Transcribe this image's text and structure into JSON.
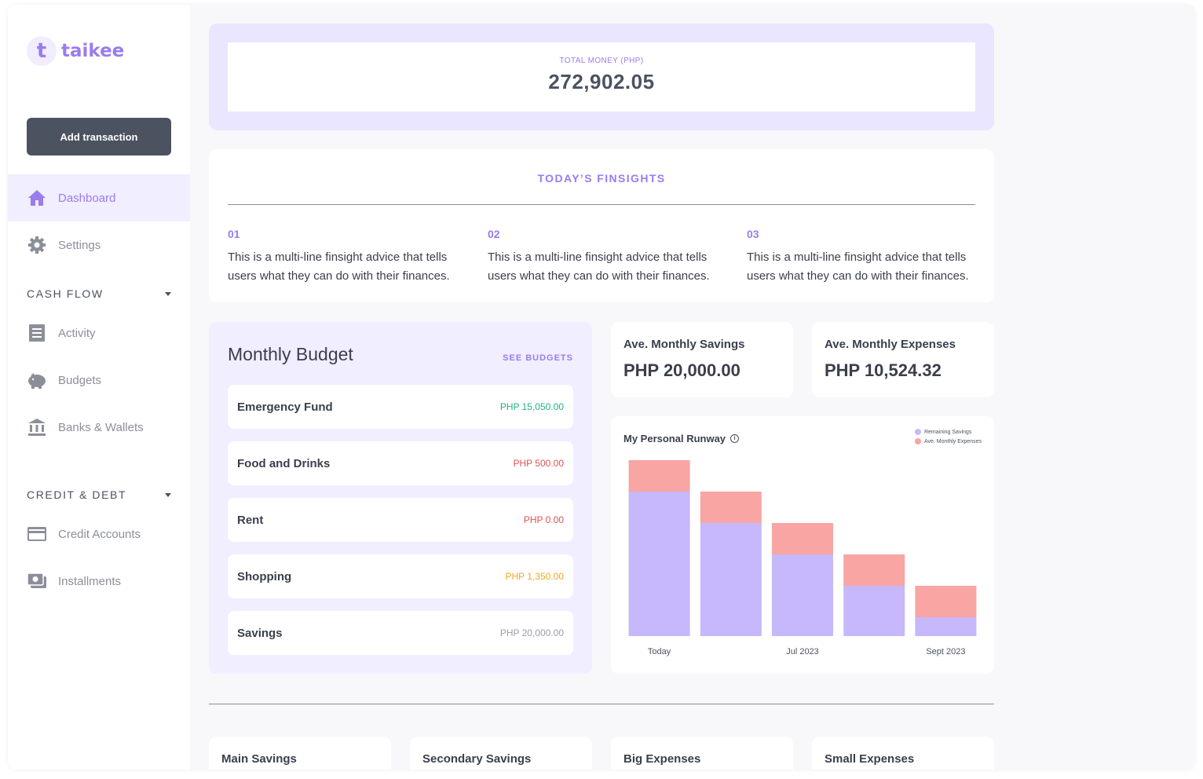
{
  "app": {
    "logo_letter": "t",
    "name": "taikee"
  },
  "sidebar": {
    "add_transaction": "Add transaction",
    "primary": [
      {
        "label": "Dashboard",
        "icon": "home-icon",
        "active": true
      },
      {
        "label": "Settings",
        "icon": "gear-icon",
        "active": false
      }
    ],
    "sections": [
      {
        "title": "CASH FLOW",
        "items": [
          {
            "label": "Activity",
            "icon": "receipt-icon"
          },
          {
            "label": "Budgets",
            "icon": "piggy-bank-icon"
          },
          {
            "label": "Banks & Wallets",
            "icon": "bank-icon"
          }
        ]
      },
      {
        "title": "CREDIT & DEBT",
        "items": [
          {
            "label": "Credit Accounts",
            "icon": "credit-card-icon"
          },
          {
            "label": "Installments",
            "icon": "cash-icon"
          }
        ]
      }
    ]
  },
  "total": {
    "label": "TOTAL MONEY (PHP)",
    "value": "272,902.05"
  },
  "finsights": {
    "title": "TODAY’S FINSIGHTS",
    "items": [
      {
        "num": "01",
        "text": "This is a multi-line finsight advice that tells users what they can do with their finances."
      },
      {
        "num": "02",
        "text": "This is a multi-line finsight advice that tells users what they can do with their finances."
      },
      {
        "num": "03",
        "text": "This is a multi-line finsight advice that tells users what they can do with their finances."
      }
    ]
  },
  "budget": {
    "title": "Monthly Budget",
    "see_all": "SEE BUDGETS",
    "items": [
      {
        "name": "Emergency Fund",
        "value": "PHP 15,050.00",
        "color": "#1fb383"
      },
      {
        "name": "Food and Drinks",
        "value": "PHP 500.00",
        "color": "#e05252"
      },
      {
        "name": "Rent",
        "value": "PHP 0.00",
        "color": "#e05252"
      },
      {
        "name": "Shopping",
        "value": "PHP 1,350.00",
        "color": "#f0a820"
      },
      {
        "name": "Savings",
        "value": "PHP 20,000.00",
        "color": "#9a9ea8"
      }
    ]
  },
  "stats": [
    {
      "label": "Ave. Monthly Savings",
      "value": "PHP 20,000.00"
    },
    {
      "label": "Ave. Monthly Expenses",
      "value": "PHP 10,524.32"
    }
  ],
  "runway": {
    "title": "My Personal Runway",
    "info_icon": "info-icon"
  },
  "chart_data": {
    "type": "bar",
    "stacked": true,
    "categories": [
      "Today",
      "",
      "Jul 2023",
      "",
      "Sept 2023"
    ],
    "series": [
      {
        "name": "Remaining Savings",
        "color": "#c6b8fb",
        "values": [
          46,
          36,
          26,
          16,
          6
        ]
      },
      {
        "name": "Ave. Monthly Expenses",
        "color": "#f8a5a3",
        "values": [
          10,
          10,
          10,
          10,
          10
        ]
      }
    ],
    "ylim": [
      0,
      56
    ],
    "grid": false,
    "legend": "top-right"
  },
  "accounts": [
    {
      "label": "Main Savings"
    },
    {
      "label": "Secondary Savings"
    },
    {
      "label": "Big Expenses"
    },
    {
      "label": "Small Expenses"
    }
  ]
}
